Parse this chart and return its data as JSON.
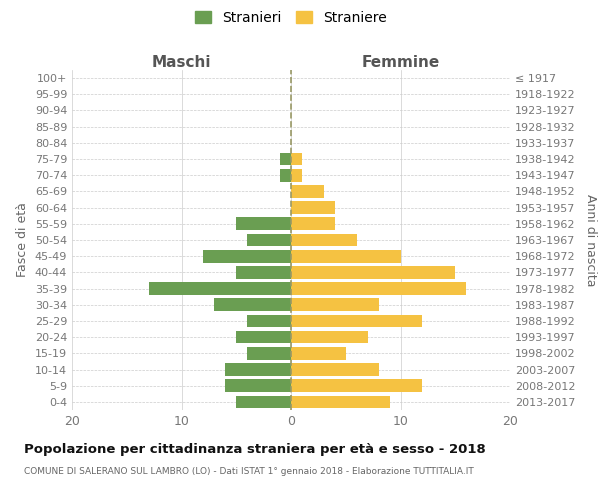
{
  "age_groups": [
    "100+",
    "95-99",
    "90-94",
    "85-89",
    "80-84",
    "75-79",
    "70-74",
    "65-69",
    "60-64",
    "55-59",
    "50-54",
    "45-49",
    "40-44",
    "35-39",
    "30-34",
    "25-29",
    "20-24",
    "15-19",
    "10-14",
    "5-9",
    "0-4"
  ],
  "birth_years": [
    "≤ 1917",
    "1918-1922",
    "1923-1927",
    "1928-1932",
    "1933-1937",
    "1938-1942",
    "1943-1947",
    "1948-1952",
    "1953-1957",
    "1958-1962",
    "1963-1967",
    "1968-1972",
    "1973-1977",
    "1978-1982",
    "1983-1987",
    "1988-1992",
    "1993-1997",
    "1998-2002",
    "2003-2007",
    "2008-2012",
    "2013-2017"
  ],
  "maschi": [
    0,
    0,
    0,
    0,
    0,
    1,
    1,
    0,
    0,
    5,
    4,
    8,
    5,
    13,
    7,
    4,
    5,
    4,
    6,
    6,
    5
  ],
  "femmine": [
    0,
    0,
    0,
    0,
    0,
    1,
    1,
    3,
    4,
    4,
    6,
    10,
    15,
    16,
    8,
    12,
    7,
    5,
    8,
    12,
    9
  ],
  "maschi_color": "#6a9e52",
  "femmine_color": "#f5c242",
  "title": "Popolazione per cittadinanza straniera per età e sesso - 2018",
  "subtitle": "COMUNE DI SALERANO SUL LAMBRO (LO) - Dati ISTAT 1° gennaio 2018 - Elaborazione TUTTITALIA.IT",
  "ylabel_left": "Fasce di età",
  "ylabel_right": "Anni di nascita",
  "xlabel_left": "Maschi",
  "xlabel_top_right": "Femmine",
  "legend_stranieri": "Stranieri",
  "legend_straniere": "Straniere",
  "xlim": 20,
  "background_color": "#ffffff",
  "grid_color": "#cccccc"
}
